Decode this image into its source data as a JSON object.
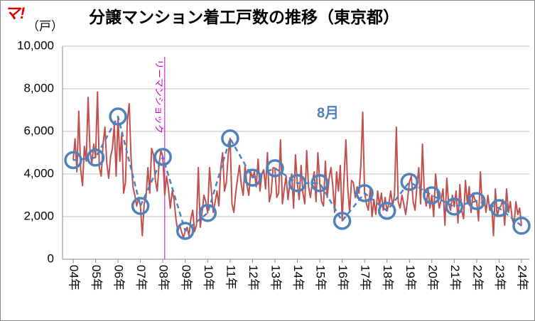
{
  "chart_data": {
    "type": "line",
    "title": "分譲マンション着工戸数の推移（東京都）",
    "y_label": "（戸）",
    "logo": "マ!",
    "xlim": [
      0,
      240
    ],
    "xticks": [
      {
        "value": 0,
        "label": "04年"
      },
      {
        "value": 12,
        "label": "05年"
      },
      {
        "value": 24,
        "label": "06年"
      },
      {
        "value": 36,
        "label": "07年"
      },
      {
        "value": 48,
        "label": "08年"
      },
      {
        "value": 60,
        "label": "09年"
      },
      {
        "value": 72,
        "label": "10年"
      },
      {
        "value": 84,
        "label": "11年"
      },
      {
        "value": 96,
        "label": "12年"
      },
      {
        "value": 108,
        "label": "13年"
      },
      {
        "value": 120,
        "label": "14年"
      },
      {
        "value": 132,
        "label": "15年"
      },
      {
        "value": 144,
        "label": "16年"
      },
      {
        "value": 156,
        "label": "17年"
      },
      {
        "value": 168,
        "label": "18年"
      },
      {
        "value": 180,
        "label": "19年"
      },
      {
        "value": 192,
        "label": "20年"
      },
      {
        "value": 204,
        "label": "21年"
      },
      {
        "value": 216,
        "label": "22年"
      },
      {
        "value": 228,
        "label": "23年"
      },
      {
        "value": 240,
        "label": "24年"
      }
    ],
    "ylim": [
      0,
      10000
    ],
    "yticks": [
      0,
      {
        "value": 2000,
        "label": "2,000"
      },
      {
        "value": 4000,
        "label": "4,000"
      },
      {
        "value": 6000,
        "label": "6,000"
      },
      {
        "value": 8000,
        "label": "8,000"
      },
      {
        "value": 10000,
        "label": "10,000"
      }
    ],
    "grid": true,
    "series": [
      {
        "color": "#c0504d",
        "style": "solid",
        "markers": false,
        "x": [
          0,
          1,
          2,
          3,
          4,
          5,
          6,
          7,
          8,
          9,
          10,
          11,
          12,
          13,
          14,
          15,
          16,
          17,
          18,
          19,
          20,
          21,
          22,
          23,
          24,
          25,
          26,
          27,
          28,
          29,
          30,
          31,
          32,
          33,
          34,
          35,
          36,
          37,
          38,
          39,
          40,
          41,
          42,
          43,
          44,
          45,
          46,
          47,
          48,
          49,
          50,
          51,
          52,
          53,
          54,
          55,
          56,
          57,
          58,
          59,
          60,
          61,
          62,
          63,
          64,
          65,
          66,
          67,
          68,
          69,
          70,
          71,
          72,
          73,
          74,
          75,
          76,
          77,
          78,
          79,
          80,
          81,
          82,
          83,
          84,
          85,
          86,
          87,
          88,
          89,
          90,
          91,
          92,
          93,
          94,
          95,
          96,
          97,
          98,
          99,
          100,
          101,
          102,
          103,
          104,
          105,
          106,
          107,
          108,
          109,
          110,
          111,
          112,
          113,
          114,
          115,
          116,
          117,
          118,
          119,
          120,
          121,
          122,
          123,
          124,
          125,
          126,
          127,
          128,
          129,
          130,
          131,
          132,
          133,
          134,
          135,
          136,
          137,
          138,
          139,
          140,
          141,
          142,
          143,
          144,
          145,
          146,
          147,
          148,
          149,
          150,
          151,
          152,
          153,
          154,
          155,
          156,
          157,
          158,
          159,
          160,
          161,
          162,
          163,
          164,
          165,
          166,
          167,
          168,
          169,
          170,
          171,
          172,
          173,
          174,
          175,
          176,
          177,
          178,
          179,
          180,
          181,
          182,
          183,
          184,
          185,
          186,
          187,
          188,
          189,
          190,
          191,
          192,
          193,
          194,
          195,
          196,
          197,
          198,
          199,
          200,
          201,
          202,
          203,
          204,
          205,
          206,
          207,
          208,
          209,
          210,
          211,
          212,
          213,
          214,
          215,
          216,
          217,
          218,
          219,
          220,
          221,
          222,
          223,
          224,
          225,
          226,
          227,
          228,
          229,
          230,
          231,
          232,
          233,
          234,
          235,
          236,
          237,
          238,
          239,
          240
        ],
        "values": [
          4650,
          5650,
          4100,
          6950,
          4200,
          3450,
          5300,
          4600,
          7600,
          5100,
          4500,
          5400,
          4770,
          7850,
          4300,
          3900,
          5400,
          6200,
          4500,
          3800,
          4800,
          5200,
          6300,
          3900,
          6700,
          4600,
          5900,
          3100,
          3600,
          6500,
          7300,
          4700,
          3400,
          3000,
          2500,
          2900,
          2500,
          1100,
          2600,
          2900,
          4300,
          3100,
          5200,
          4900,
          3700,
          3200,
          4500,
          5100,
          4800,
          3000,
          3900,
          3300,
          2400,
          3200,
          2800,
          1900,
          1300,
          1600,
          1300,
          1000,
          1330,
          1500,
          1100,
          1900,
          2300,
          1300,
          1600,
          4300,
          1500,
          2200,
          3000,
          2700,
          2170,
          4300,
          3200,
          2200,
          2700,
          3200,
          2500,
          4300,
          5000,
          3200,
          3600,
          4900,
          5670,
          2600,
          2200,
          3100,
          3800,
          4400,
          3500,
          3000,
          4400,
          3500,
          3000,
          4100,
          3830,
          4100,
          3400,
          4700,
          3200,
          4000,
          4200,
          3300,
          5000,
          2700,
          3100,
          4300,
          4270,
          2900,
          3100,
          5600,
          2600,
          3300,
          3900,
          2800,
          3600,
          4000,
          2400,
          4900,
          3570,
          2800,
          4400,
          3100,
          2600,
          5100,
          3400,
          2900,
          3600,
          4100,
          2700,
          5000,
          3570,
          2700,
          2500,
          4600,
          2900,
          3800,
          4300,
          3400,
          2200,
          4100,
          3200,
          4400,
          1800,
          3800,
          5600,
          3300,
          2200,
          3700,
          3600,
          2900,
          3400,
          3100,
          4400,
          6900,
          3100,
          2600,
          2300,
          3300,
          2000,
          2800,
          2100,
          3200,
          2500,
          3100,
          2300,
          2900,
          2270,
          2600,
          3200,
          2500,
          3000,
          6200,
          2700,
          2400,
          3000,
          2600,
          2100,
          2800,
          3630,
          3900,
          2700,
          2300,
          3400,
          4300,
          2600,
          5400,
          3000,
          2500,
          3300,
          2400,
          3000,
          2000,
          4000,
          3100,
          2400,
          2800,
          3300,
          1600,
          3800,
          2600,
          2300,
          3000,
          2470,
          3200,
          1700,
          3500,
          2300,
          1900,
          3700,
          2600,
          3400,
          2200,
          3100,
          2800,
          2730,
          1800,
          4100,
          2500,
          2900,
          2200,
          3000,
          2300,
          2600,
          1100,
          3300,
          2000,
          2400,
          2500,
          2800,
          1600,
          3300,
          2200,
          2700,
          1900,
          1600,
          2700,
          2100,
          2400,
          1570
        ]
      },
      {
        "color": "#4f81bd",
        "style": "dashed",
        "markers": true,
        "x": [
          0,
          12,
          24,
          36,
          48,
          60,
          72,
          84,
          96,
          108,
          120,
          132,
          144,
          156,
          168,
          180,
          192,
          204,
          216,
          228,
          240
        ],
        "values": [
          4650,
          4770,
          6700,
          2500,
          4800,
          1330,
          2170,
          5670,
          3830,
          4270,
          3570,
          3570,
          1800,
          3100,
          2270,
          3630,
          3000,
          2470,
          2730,
          2400,
          1570
        ]
      }
    ],
    "annotations": [
      {
        "text": "リーマンショック",
        "x": 49,
        "color": "#cc00cc"
      },
      {
        "text": "8月",
        "color": "#4f81bd"
      }
    ]
  }
}
